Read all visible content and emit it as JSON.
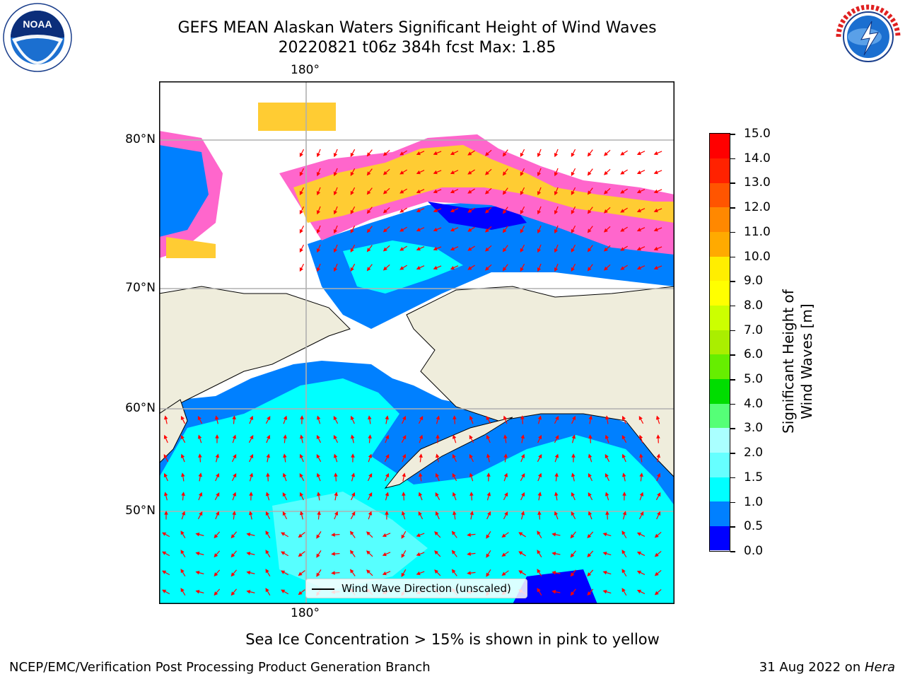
{
  "header": {
    "title_line1": "GEFS MEAN Alaskan Waters Significant Height of Wind Waves",
    "title_line2": "20220821 t06z 384h fcst   Max: 1.85"
  },
  "logos": {
    "left": {
      "name": "NOAA",
      "ring_text": "NATIONAL OCEANIC AND ATMOSPHERIC ADMINISTRATION · U.S. DEPARTMENT OF COMMERCE"
    },
    "right": {
      "name": "NATIONAL WEATHER SERVICE"
    }
  },
  "map": {
    "lon_label_top": "180°",
    "lon_label_bottom": "180°",
    "lat_labels": [
      "80°N",
      "70°N",
      "60°N",
      "50°N"
    ],
    "colors": {
      "ocean_low": "#0000ff",
      "ocean_mid": "#0080ff",
      "ocean_high": "#00ffff",
      "land": "#efeddc",
      "arrow": "#ff0000",
      "ice_pink": "#ff66cc",
      "ice_yellow": "#ffcc33"
    }
  },
  "colorbar": {
    "label": "Significant Height of Wind Waves [m]",
    "ticks": [
      "15.0",
      "14.0",
      "13.0",
      "12.0",
      "11.0",
      "10.0",
      "9.0",
      "8.0",
      "7.0",
      "6.0",
      "5.0",
      "4.0",
      "3.0",
      "2.0",
      "1.5",
      "1.0",
      "0.5",
      "0.0"
    ],
    "colors": [
      "#0000ff",
      "#0080ff",
      "#00ffff",
      "#66ffff",
      "#aaffff",
      "#55ff77",
      "#00dd00",
      "#66ee00",
      "#aaee00",
      "#ccff00",
      "#ffff00",
      "#ffee00",
      "#ffaa00",
      "#ff8800",
      "#ff5500",
      "#ff2200",
      "#ff0000"
    ]
  },
  "legend": {
    "label": "Wind Wave Direction (unscaled)"
  },
  "note": "Sea Ice Concentration > 15% is shown in pink to yellow",
  "footer": {
    "left": "NCEP/EMC/Verification Post Processing Product Generation Branch",
    "right_prefix": "31 Aug 2022 on ",
    "right_host": "Hera"
  }
}
